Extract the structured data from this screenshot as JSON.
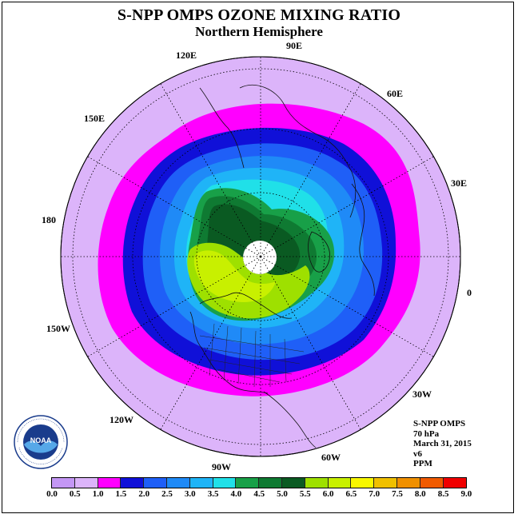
{
  "title": "S-NPP OMPS OZONE MIXING RATIO",
  "subtitle": "Northern Hemisphere",
  "longitude_labels": [
    "90E",
    "60E",
    "30E",
    "0",
    "30W",
    "60W",
    "90W",
    "120W",
    "150W",
    "180",
    "150E",
    "120E"
  ],
  "info": {
    "instrument": "S-NPP OMPS",
    "level": "70 hPa",
    "date": "March 31, 2015",
    "version": "v6",
    "units": "PPM"
  },
  "logo": {
    "text": "NOAA",
    "ring_text": "NATIONAL OCEANIC AND ATMOSPHERIC ADMINISTRATION",
    "ring_bottom": "U.S. DEPARTMENT OF COMMERCE"
  },
  "colorbar": {
    "ticks": [
      "0.0",
      "0.5",
      "1.0",
      "1.5",
      "2.0",
      "2.5",
      "3.0",
      "3.5",
      "4.0",
      "4.5",
      "5.0",
      "5.5",
      "6.0",
      "6.5",
      "7.0",
      "7.5",
      "8.0",
      "8.5",
      "9.0"
    ],
    "colors": [
      "#c497f5",
      "#dcb4fa",
      "#ff00ff",
      "#1010d8",
      "#1f5ff7",
      "#1f8af7",
      "#1fb4f7",
      "#20e0e8",
      "#18a048",
      "#0f7a32",
      "#0a5a22",
      "#9ee000",
      "#c8f000",
      "#f8f800",
      "#f0c000",
      "#f09000",
      "#f05a00",
      "#f00000",
      "#8b5a3c"
    ]
  },
  "map_data": {
    "projection": "north polar stereographic",
    "level_hPa": 70,
    "missing_polar_cap": true
  }
}
